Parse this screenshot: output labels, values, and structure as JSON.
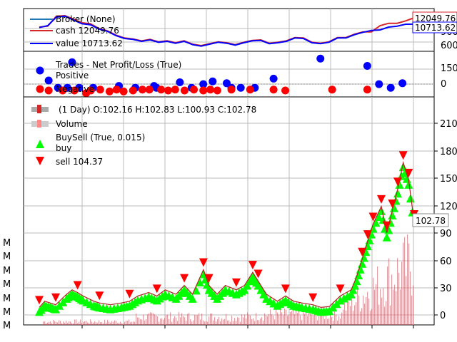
{
  "chart_data": [
    {
      "type": "line",
      "title": "",
      "legend": [
        {
          "label": "Broker (None)",
          "color": "#1f77b4"
        },
        {
          "label": "cash 12049.76",
          "color": "#d62728"
        },
        {
          "label": "value 10713.62",
          "color": "#0000ff"
        }
      ],
      "yticks": [
        "9000",
        "6000"
      ],
      "last_value_labels": [
        "12049.76",
        "10713.62"
      ],
      "ylim": [
        5000,
        14000
      ],
      "series": [
        {
          "name": "cash 12049.76",
          "color": "#d62728",
          "values": [
            10100,
            10300,
            12400,
            12500,
            11800,
            11000,
            10800,
            9800,
            9300,
            8400,
            7800,
            7600,
            7200,
            7500,
            7000,
            7200,
            6800,
            7200,
            6500,
            6200,
            6600,
            7000,
            6800,
            6400,
            6900,
            7300,
            7400,
            6700,
            6900,
            7200,
            7900,
            7800,
            6900,
            6700,
            7000,
            7900,
            7900,
            8600,
            9100,
            9100,
            10400,
            10900,
            10900,
            11400,
            12049.76
          ]
        },
        {
          "name": "value 10713.62",
          "color": "#0000ff",
          "values": [
            10000,
            10400,
            12200,
            12400,
            11600,
            10800,
            10600,
            9700,
            9200,
            8300,
            7700,
            7500,
            7100,
            7400,
            6900,
            7100,
            6700,
            7100,
            6400,
            6100,
            6500,
            6900,
            6700,
            6300,
            6800,
            7200,
            7300,
            6600,
            6800,
            7100,
            7800,
            7700,
            6800,
            6600,
            6900,
            7800,
            7800,
            8500,
            9000,
            9400,
            9500,
            10100,
            10300,
            10700,
            10713.62
          ]
        }
      ]
    },
    {
      "type": "scatter",
      "legend": [
        {
          "label": "Trades - Net Profit/Loss (True)",
          "color": "#000000"
        },
        {
          "label": "Positive",
          "color": "#0000ff"
        },
        {
          "label": "Negative",
          "color": "#ff0000"
        }
      ],
      "yticks": [
        "150",
        "0"
      ],
      "ylim": [
        -50,
        200
      ],
      "positive": [
        [
          0.04,
          40
        ],
        [
          0.08,
          0
        ],
        [
          0.12,
          0
        ],
        [
          0.14,
          140
        ],
        [
          0.17,
          0
        ],
        [
          0.23,
          0
        ],
        [
          0.34,
          10
        ],
        [
          0.41,
          0
        ],
        [
          0.49,
          10
        ],
        [
          0.5,
          0
        ],
        [
          0.6,
          30
        ],
        [
          0.65,
          0
        ],
        [
          0.7,
          20
        ],
        [
          0.74,
          35
        ],
        [
          0.8,
          25
        ],
        [
          0.82,
          0
        ],
        [
          0.86,
          0
        ],
        [
          0.92,
          0
        ],
        [
          1.0,
          50
        ],
        [
          1.2,
          160
        ],
        [
          1.4,
          120
        ],
        [
          1.45,
          20
        ],
        [
          1.5,
          0
        ],
        [
          1.55,
          25
        ]
      ],
      "negative": [
        [
          0.04,
          -15
        ],
        [
          0.1,
          -15
        ],
        [
          0.15,
          -15
        ],
        [
          0.2,
          -30
        ],
        [
          0.22,
          -15
        ],
        [
          0.26,
          -10
        ],
        [
          0.3,
          -20
        ],
        [
          0.33,
          -10
        ],
        [
          0.36,
          -20
        ],
        [
          0.4,
          -15
        ],
        [
          0.44,
          -10
        ],
        [
          0.47,
          -10
        ],
        [
          0.52,
          -10
        ],
        [
          0.55,
          -15
        ],
        [
          0.58,
          -10
        ],
        [
          0.62,
          -15
        ],
        [
          0.66,
          -10
        ],
        [
          0.7,
          -15
        ],
        [
          0.73,
          -10
        ],
        [
          0.76,
          -15
        ],
        [
          0.82,
          -10
        ],
        [
          0.9,
          -10
        ],
        [
          1.0,
          -10
        ],
        [
          1.05,
          -15
        ],
        [
          1.25,
          -10
        ],
        [
          1.4,
          -10
        ]
      ]
    },
    {
      "type": "candlestick",
      "legend_title": "(1 Day) O:102.16 H:102.83 L:100.93 C:102.78",
      "legend": [
        {
          "label": "Volume",
          "color": "#ff8888"
        },
        {
          "label": "BuySell (True, 0.015)",
          "color": "#000000"
        },
        {
          "label": "buy",
          "color": "#00ff00"
        },
        {
          "label": "sell 104.37",
          "color": "#ff0000"
        }
      ],
      "last_close_label": "102.78",
      "yticks_right": [
        "210",
        "180",
        "150",
        "120",
        "90",
        "60",
        "30",
        "0"
      ],
      "ylim": [
        -15,
        245
      ],
      "volume_ticks_left": [
        "M",
        "M",
        "M",
        "M",
        "M",
        "M",
        "M"
      ],
      "close": [
        [
          0,
          5
        ],
        [
          0.02,
          12
        ],
        [
          0.04,
          10
        ],
        [
          0.06,
          8
        ],
        [
          0.1,
          20
        ],
        [
          0.12,
          25
        ],
        [
          0.14,
          22
        ],
        [
          0.16,
          18
        ],
        [
          0.2,
          12
        ],
        [
          0.22,
          10
        ],
        [
          0.26,
          8
        ],
        [
          0.3,
          10
        ],
        [
          0.33,
          12
        ],
        [
          0.36,
          18
        ],
        [
          0.4,
          22
        ],
        [
          0.43,
          18
        ],
        [
          0.46,
          25
        ],
        [
          0.5,
          20
        ],
        [
          0.53,
          30
        ],
        [
          0.56,
          20
        ],
        [
          0.6,
          48
        ],
        [
          0.62,
          30
        ],
        [
          0.65,
          20
        ],
        [
          0.68,
          30
        ],
        [
          0.72,
          25
        ],
        [
          0.75,
          30
        ],
        [
          0.78,
          45
        ],
        [
          0.8,
          35
        ],
        [
          0.83,
          20
        ],
        [
          0.87,
          12
        ],
        [
          0.9,
          18
        ],
        [
          0.93,
          12
        ],
        [
          0.96,
          10
        ],
        [
          1.0,
          8
        ],
        [
          1.03,
          5
        ],
        [
          1.06,
          6
        ],
        [
          1.1,
          18
        ],
        [
          1.14,
          25
        ],
        [
          1.16,
          40
        ],
        [
          1.18,
          60
        ],
        [
          1.2,
          80
        ],
        [
          1.22,
          100
        ],
        [
          1.25,
          120
        ],
        [
          1.27,
          90
        ],
        [
          1.29,
          115
        ],
        [
          1.31,
          140
        ],
        [
          1.33,
          170
        ],
        [
          1.35,
          150
        ],
        [
          1.37,
          102.78
        ]
      ]
    }
  ]
}
